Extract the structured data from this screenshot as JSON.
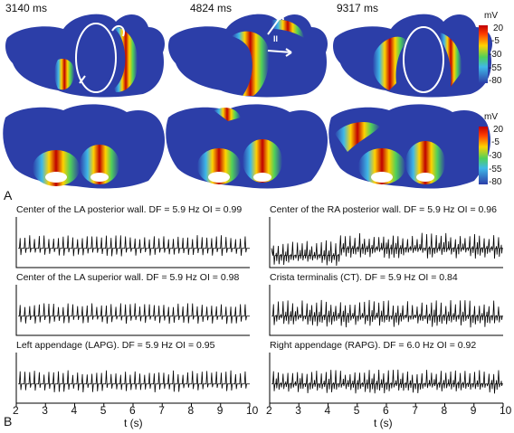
{
  "panel_a": {
    "letter": "A",
    "times": [
      "3140 ms",
      "4824 ms",
      "9317 ms"
    ],
    "colorbar": {
      "unit": "mV",
      "ticks": [
        "20",
        "-5",
        "-30",
        "-55",
        "-80"
      ],
      "colors": [
        "#c00000",
        "#ff3b00",
        "#ffd200",
        "#4fd05a",
        "#3fb8e8",
        "#2c3ea8"
      ]
    },
    "arrow_label": "II"
  },
  "panel_b": {
    "letter": "B",
    "xlabel": "t (s)",
    "x_ticks": [
      "2",
      "3",
      "4",
      "5",
      "6",
      "7",
      "8",
      "9",
      "10"
    ],
    "left_traces": [
      {
        "title": "Center of the LA posterior wall. DF = 5.9 Hz OI = 0.99"
      },
      {
        "title": "Center of the LA superior wall. DF = 5.9 Hz OI = 0.98"
      },
      {
        "title": "Left appendage (LAPG). DF = 5.9 Hz OI = 0.95"
      }
    ],
    "right_traces": [
      {
        "title": "Center of the RA posterior wall. DF = 5.9 Hz OI = 0.96"
      },
      {
        "title": "Crista terminalis (CT). DF = 5.9 Hz OI = 0.84"
      },
      {
        "title": "Right appendage (RAPG). DF = 6.0 Hz OI = 0.92"
      }
    ]
  }
}
